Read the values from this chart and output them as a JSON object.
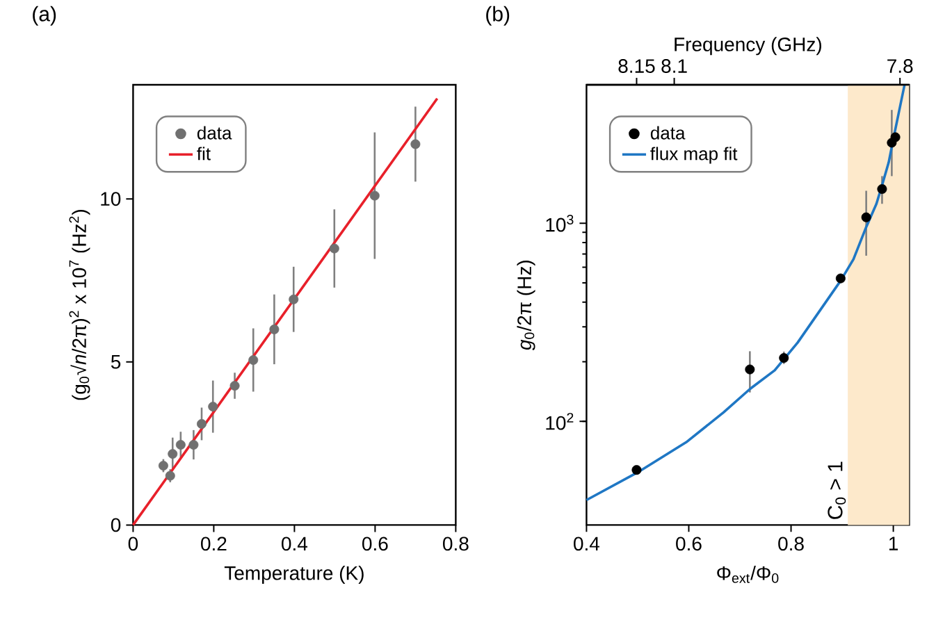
{
  "chart_data": [
    {
      "type": "scatter",
      "annotations": [
        "(a)"
      ],
      "xlabel": "Temperature (K)",
      "ylabel": "(g$_{0}$√*n*/2π)$^{2}$ x 10$^{7}$ (Hz$^{2}$)",
      "xlim": [
        0,
        0.8
      ],
      "ylim": [
        0,
        13.5
      ],
      "xticks": [
        0,
        0.2,
        0.4,
        0.6,
        0.8
      ],
      "yticks": [
        0,
        5,
        10
      ],
      "legend": "top left",
      "series": [
        {
          "name": "data",
          "marker": "circle",
          "color": "#707070",
          "x": [
            0.075,
            0.092,
            0.098,
            0.118,
            0.15,
            0.17,
            0.198,
            0.252,
            0.298,
            0.35,
            0.398,
            0.499,
            0.599,
            0.7
          ],
          "values": [
            1.82,
            1.51,
            2.18,
            2.46,
            2.46,
            3.1,
            3.63,
            4.27,
            5.06,
            6.0,
            6.92,
            8.48,
            10.1,
            11.68
          ],
          "errors": [
            0.2,
            0.2,
            0.5,
            0.4,
            0.45,
            0.5,
            0.8,
            0.4,
            0.97,
            1.07,
            1.0,
            1.2,
            1.94,
            1.15
          ]
        },
        {
          "name": "fit",
          "type": "line",
          "marker": "none",
          "color": "#e8202a",
          "x": [
            0,
            0.754
          ],
          "values": [
            0,
            13.08
          ]
        }
      ]
    },
    {
      "type": "scatter",
      "annotations": [
        "(b)"
      ],
      "xlabel": "Φ$_{ext}$/Φ$_{0}$",
      "ylabel": "*g*$_{0}$/2π (Hz)",
      "x2label": "Frequency (GHz)",
      "xlim": [
        0.4,
        1.031
      ],
      "ylim": [
        30,
        5000
      ],
      "log": "y",
      "xticks": [
        0.4,
        0.6,
        0.8,
        1
      ],
      "yticks": [
        {
          "value": 100,
          "label": "10$^{2}$"
        },
        {
          "value": 1000,
          "label": "10$^{3}$"
        }
      ],
      "x2lim": [
        8.2166,
        7.7878
      ],
      "x2ticks": [
        8.15,
        8.1,
        7.8
      ],
      "legend": "top left",
      "bands": [
        {
          "axis": "x",
          "from": 0.911,
          "to": 1.031,
          "label": "C$_{0}$ > 1",
          "color": "#fde9cb"
        }
      ],
      "series": [
        {
          "name": "data",
          "marker": "circle",
          "color": "#000000",
          "x": [
            0.498,
            0.7195,
            0.786,
            0.897,
            0.947,
            0.978,
            0.997,
            1.004
          ],
          "values": [
            56.9,
            183,
            209,
            527,
            1072,
            1489,
            2550,
            2720
          ],
          "errors": [
            null,
            [
              140,
              226
            ],
            [
              195,
              225
            ],
            null,
            [
              686,
              1459
            ],
            [
              1254,
              1730
            ],
            [
              1730,
              3733
            ],
            null
          ]
        },
        {
          "name": "flux map fit",
          "type": "line",
          "marker": "none",
          "color": "#1f77c4",
          "x": [
            0.4,
            0.5,
            0.595,
            0.668,
            0.72,
            0.768,
            0.813,
            0.897,
            0.922,
            0.947,
            0.967,
            0.978,
            0.991,
            1.0,
            1.022
          ],
          "values": [
            40.1,
            55.3,
            78.5,
            111,
            146,
            181,
            250,
            513,
            658,
            957,
            1254,
            1556,
            2030,
            2660,
            5000
          ]
        }
      ]
    }
  ]
}
